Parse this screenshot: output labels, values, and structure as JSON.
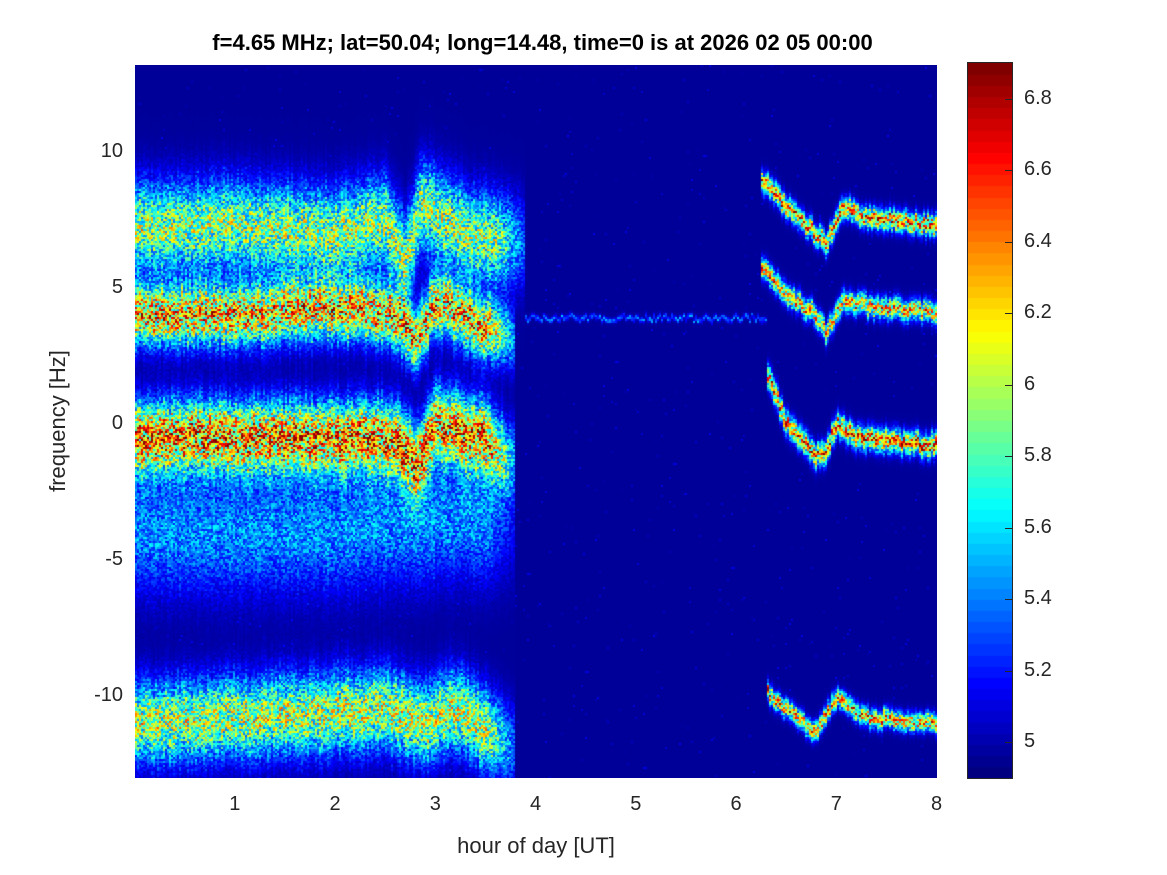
{
  "chart_data": {
    "type": "heatmap",
    "title": "f=4.65 MHz;  lat=50.04; long=14.48, time=0 is at 2026 02 05 00:00",
    "xlabel": "hour of day [UT]",
    "ylabel": "frequency [Hz]",
    "xlim": [
      0,
      8
    ],
    "ylim": [
      -13,
      13.2
    ],
    "xticks": [
      1,
      2,
      3,
      4,
      5,
      6,
      7,
      8
    ],
    "yticks": [
      -10,
      -5,
      0,
      5,
      10
    ],
    "colormap": "jet",
    "clim": [
      4.9,
      6.9
    ],
    "colorbar_ticks": [
      "5",
      "5.2",
      "5.4",
      "5.6",
      "5.8",
      "6",
      "6.2",
      "6.4",
      "6.6",
      "6.8"
    ],
    "background_value": 4.95,
    "features": [
      {
        "name": "band-upper-early",
        "points": [
          [
            0,
            7.2
          ],
          [
            1,
            7.3
          ],
          [
            2,
            7.0
          ],
          [
            2.5,
            7.5
          ],
          [
            2.7,
            6.0
          ],
          [
            2.85,
            8.0
          ],
          [
            3.3,
            7.0
          ],
          [
            3.9,
            6.5
          ]
        ],
        "width_hz": 1.1,
        "peak": 0.7,
        "fade_end": true
      },
      {
        "name": "band-4hz-early",
        "points": [
          [
            0,
            4.0
          ],
          [
            1,
            4.0
          ],
          [
            2,
            4.2
          ],
          [
            2.6,
            4.0
          ],
          [
            2.8,
            3.0
          ],
          [
            3.0,
            4.5
          ],
          [
            3.5,
            3.5
          ],
          [
            3.8,
            3.0
          ]
        ],
        "width_hz": 0.75,
        "peak": 0.95,
        "fade_end": true
      },
      {
        "name": "band-0hz-early",
        "points": [
          [
            0,
            -0.5
          ],
          [
            1,
            -0.5
          ],
          [
            2,
            -0.5
          ],
          [
            2.6,
            -0.5
          ],
          [
            2.8,
            -1.5
          ],
          [
            3.0,
            0
          ],
          [
            3.5,
            -0.5
          ],
          [
            3.8,
            -1.5
          ]
        ],
        "width_hz": 0.9,
        "peak": 1.0,
        "fade_end": true
      },
      {
        "name": "diffuse-negative-early",
        "points": [
          [
            0,
            -4
          ],
          [
            2,
            -4
          ],
          [
            3,
            -3.5
          ],
          [
            3.8,
            -3.5
          ]
        ],
        "width_hz": 1.5,
        "peak": 0.35,
        "fade_end": true
      },
      {
        "name": "band-minus11-early",
        "points": [
          [
            0,
            -11
          ],
          [
            1,
            -10.8
          ],
          [
            2,
            -10.6
          ],
          [
            2.5,
            -10.5
          ],
          [
            2.9,
            -11
          ],
          [
            3.2,
            -10.5
          ],
          [
            3.8,
            -12
          ]
        ],
        "width_hz": 1.0,
        "peak": 0.75,
        "fade_end": true
      },
      {
        "name": "trace-upper-late",
        "points": [
          [
            6.25,
            9
          ],
          [
            6.5,
            8
          ],
          [
            6.9,
            6.6
          ],
          [
            7.05,
            8
          ],
          [
            7.3,
            7.6
          ],
          [
            8,
            7.3
          ]
        ],
        "width_hz": 0.25,
        "peak": 1.0,
        "fade_end": false
      },
      {
        "name": "trace-4hz-late",
        "points": [
          [
            6.25,
            5.8
          ],
          [
            6.5,
            4.8
          ],
          [
            6.8,
            4.0
          ],
          [
            6.9,
            3.3
          ],
          [
            7.05,
            4.5
          ],
          [
            7.4,
            4.3
          ],
          [
            8,
            4.1
          ]
        ],
        "width_hz": 0.25,
        "peak": 0.9,
        "fade_end": false
      },
      {
        "name": "trace-0hz-late",
        "points": [
          [
            6.3,
            2
          ],
          [
            6.5,
            0
          ],
          [
            6.8,
            -1.2
          ],
          [
            6.9,
            -1
          ],
          [
            7.0,
            0
          ],
          [
            7.2,
            -0.5
          ],
          [
            8,
            -0.8
          ]
        ],
        "width_hz": 0.28,
        "peak": 1.0,
        "fade_end": false
      },
      {
        "name": "trace-minus11-late",
        "points": [
          [
            6.3,
            -9.8
          ],
          [
            6.6,
            -10.8
          ],
          [
            6.8,
            -11.3
          ],
          [
            7.0,
            -10
          ],
          [
            7.3,
            -10.8
          ],
          [
            8,
            -11
          ]
        ],
        "width_hz": 0.22,
        "peak": 0.95,
        "fade_end": false
      },
      {
        "name": "line-3.9hz",
        "points": [
          [
            3.9,
            3.9
          ],
          [
            6.3,
            3.9
          ]
        ],
        "width_hz": 0.06,
        "peak": 0.3,
        "fade_end": false
      }
    ]
  }
}
